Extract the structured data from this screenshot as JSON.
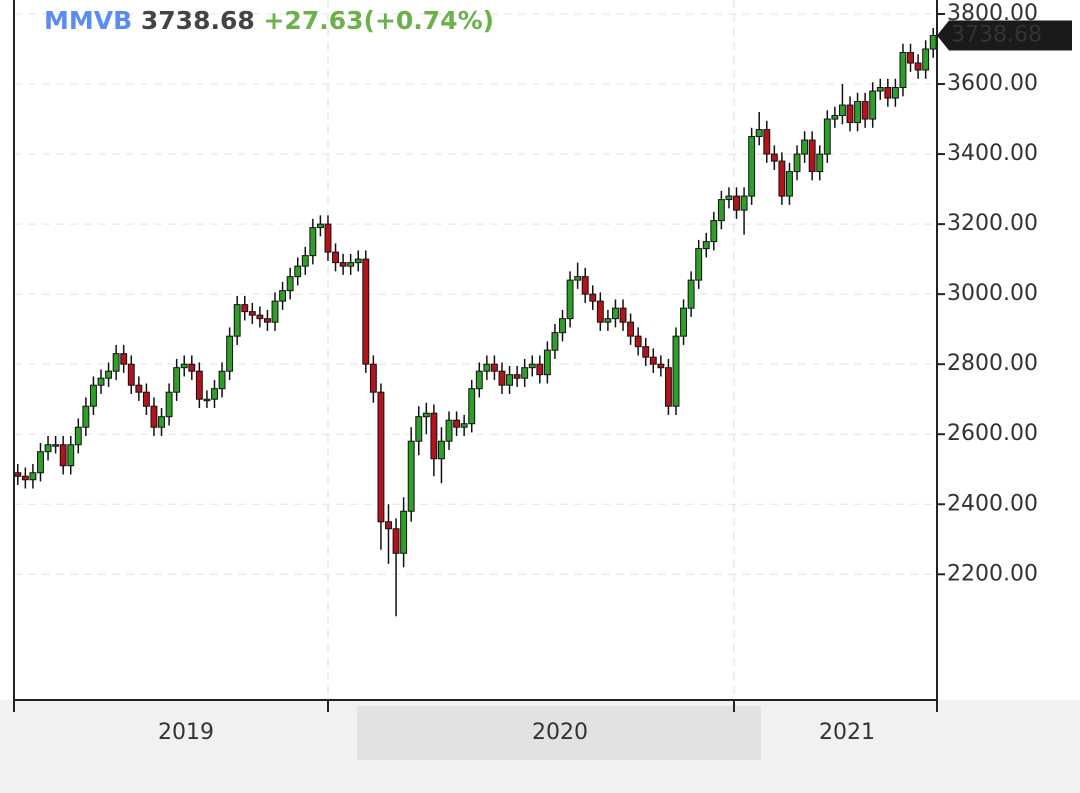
{
  "chart_data": {
    "type": "candlestick",
    "title": "MMVB",
    "change": "+27.63(+0.74%)",
    "up_color": "#2f9e2a",
    "down_color": "#b3141c",
    "grid": true,
    "x_labels": [
      "2019",
      "2020",
      "2021"
    ],
    "ylim": [
      1841,
      3840
    ],
    "yticks": [
      {
        "value": 2200,
        "label": "2200.00"
      },
      {
        "value": 2400,
        "label": "2400.00"
      },
      {
        "value": 2600,
        "label": "2600.00"
      },
      {
        "value": 2800,
        "label": "2800.00"
      },
      {
        "value": 3000,
        "label": "3000.00"
      },
      {
        "value": 3200,
        "label": "3200.00"
      },
      {
        "value": 3400,
        "label": "3400.00"
      },
      {
        "value": 3600,
        "label": "3600.00"
      },
      {
        "value": 3800,
        "label": "3800.00"
      }
    ],
    "open": [
      2490,
      2480,
      2470,
      2490,
      2550,
      2570,
      2570,
      2510,
      2570,
      2620,
      2680,
      2740,
      2760,
      2780,
      2830,
      2800,
      2740,
      2720,
      2680,
      2620,
      2650,
      2720,
      2790,
      2800,
      2780,
      2700,
      2700,
      2730,
      2780,
      2880,
      2970,
      2950,
      2940,
      2930,
      2920,
      2980,
      3010,
      3050,
      3080,
      3110,
      3190,
      3200,
      3120,
      3090,
      3080,
      3090,
      3100,
      2800,
      2720,
      2350,
      2330,
      2260,
      2380,
      2580,
      2650,
      2660,
      2530,
      2580,
      2640,
      2620,
      2630,
      2730,
      2780,
      2800,
      2780,
      2740,
      2770,
      2760,
      2790,
      2800,
      2770,
      2840,
      2890,
      2930,
      3040,
      3050,
      3000,
      2980,
      2920,
      2930,
      2960,
      2920,
      2880,
      2850,
      2820,
      2800,
      2790,
      2680,
      2880,
      2960,
      3040,
      3130,
      3150,
      3210,
      3270,
      3280,
      3240,
      3280,
      3450,
      3470,
      3400,
      3380,
      3280,
      3350,
      3400,
      3440,
      3350,
      3400,
      3500,
      3510,
      3540,
      3490,
      3550,
      3500,
      3580,
      3590,
      3560,
      3590,
      3690,
      3660,
      3640,
      3700
    ],
    "high": [
      2515,
      2505,
      2515,
      2575,
      2595,
      2595,
      2595,
      2595,
      2645,
      2705,
      2765,
      2785,
      2805,
      2855,
      2855,
      2825,
      2765,
      2745,
      2705,
      2675,
      2745,
      2815,
      2825,
      2825,
      2805,
      2725,
      2755,
      2805,
      2905,
      2995,
      2995,
      2975,
      2965,
      2955,
      3005,
      3035,
      3075,
      3105,
      3135,
      3215,
      3225,
      3225,
      3145,
      3115,
      3115,
      3125,
      3125,
      2825,
      2745,
      2400,
      2360,
      2420,
      2620,
      2680,
      2690,
      2685,
      2620,
      2665,
      2665,
      2655,
      2755,
      2805,
      2825,
      2825,
      2805,
      2795,
      2795,
      2815,
      2825,
      2825,
      2865,
      2915,
      2955,
      3065,
      3090,
      3075,
      3025,
      3005,
      2955,
      2985,
      2985,
      2945,
      2905,
      2875,
      2845,
      2825,
      2815,
      2905,
      2985,
      3065,
      3155,
      3175,
      3235,
      3295,
      3305,
      3305,
      3305,
      3475,
      3520,
      3495,
      3425,
      3405,
      3375,
      3425,
      3465,
      3465,
      3425,
      3525,
      3535,
      3600,
      3565,
      3575,
      3575,
      3605,
      3615,
      3615,
      3615,
      3715,
      3715,
      3685,
      3725,
      3760
    ],
    "low": [
      2455,
      2445,
      2445,
      2465,
      2525,
      2545,
      2485,
      2485,
      2545,
      2595,
      2655,
      2715,
      2735,
      2755,
      2775,
      2715,
      2695,
      2655,
      2595,
      2595,
      2625,
      2695,
      2765,
      2755,
      2675,
      2675,
      2675,
      2705,
      2755,
      2855,
      2925,
      2915,
      2905,
      2895,
      2895,
      2955,
      2985,
      3025,
      3055,
      3085,
      3165,
      3095,
      3065,
      3055,
      3055,
      3065,
      2775,
      2690,
      2270,
      2230,
      2080,
      2220,
      2350,
      2540,
      2600,
      2480,
      2460,
      2555,
      2595,
      2595,
      2605,
      2705,
      2755,
      2755,
      2715,
      2715,
      2735,
      2735,
      2765,
      2745,
      2745,
      2815,
      2865,
      2905,
      3015,
      2975,
      2955,
      2895,
      2895,
      2905,
      2895,
      2855,
      2825,
      2795,
      2775,
      2765,
      2655,
      2655,
      2855,
      2935,
      3015,
      3105,
      3125,
      3185,
      3245,
      3215,
      3170,
      3255,
      3425,
      3375,
      3355,
      3255,
      3255,
      3325,
      3375,
      3325,
      3325,
      3375,
      3475,
      3485,
      3465,
      3465,
      3475,
      3475,
      3555,
      3535,
      3535,
      3565,
      3635,
      3615,
      3615,
      3675
    ],
    "close": [
      2480,
      2470,
      2490,
      2550,
      2570,
      2570,
      2510,
      2570,
      2620,
      2680,
      2740,
      2760,
      2780,
      2830,
      2800,
      2740,
      2720,
      2680,
      2620,
      2650,
      2720,
      2790,
      2800,
      2780,
      2700,
      2700,
      2730,
      2780,
      2880,
      2970,
      2950,
      2940,
      2930,
      2920,
      2980,
      3010,
      3050,
      3080,
      3110,
      3190,
      3200,
      3120,
      3090,
      3080,
      3090,
      3100,
      2800,
      2720,
      2350,
      2330,
      2260,
      2380,
      2580,
      2650,
      2660,
      2530,
      2580,
      2640,
      2620,
      2630,
      2730,
      2780,
      2800,
      2780,
      2740,
      2770,
      2760,
      2790,
      2800,
      2770,
      2840,
      2890,
      2930,
      3040,
      3050,
      3000,
      2980,
      2920,
      2930,
      2960,
      2920,
      2880,
      2850,
      2820,
      2800,
      2790,
      2680,
      2880,
      2960,
      3040,
      3130,
      3150,
      3210,
      3270,
      3280,
      3240,
      3280,
      3450,
      3470,
      3400,
      3380,
      3280,
      3350,
      3400,
      3440,
      3350,
      3400,
      3500,
      3510,
      3540,
      3490,
      3550,
      3500,
      3580,
      3590,
      3560,
      3590,
      3690,
      3660,
      3640,
      3700,
      3738.68
    ]
  }
}
